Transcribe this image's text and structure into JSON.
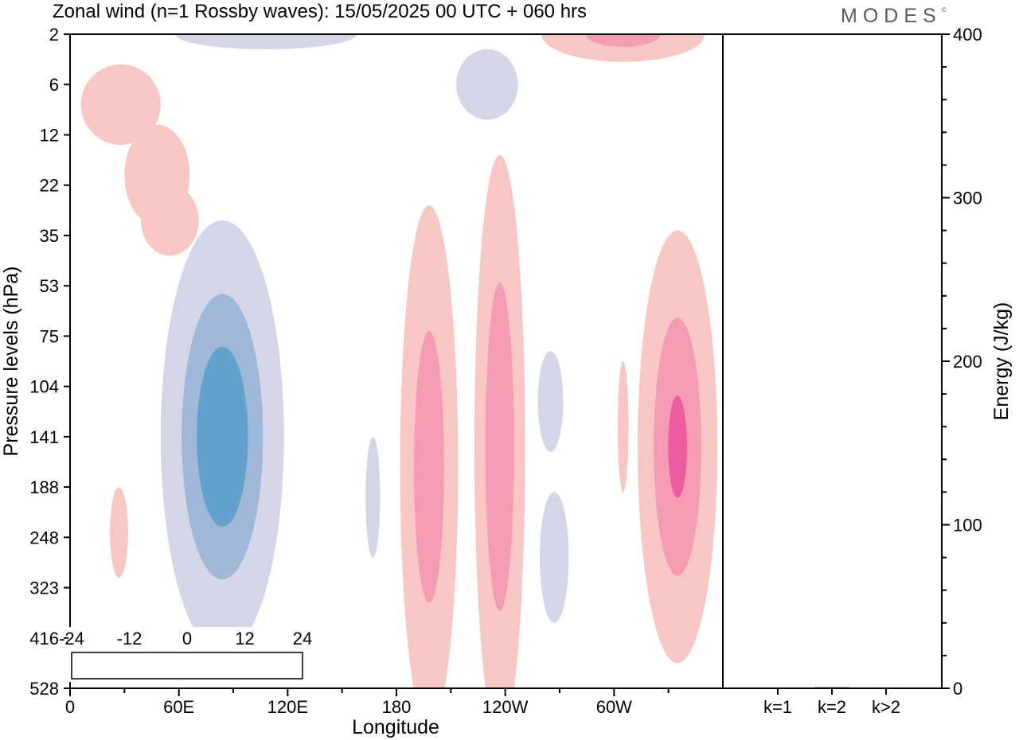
{
  "title": "Zonal wind (n=1 Rossby waves):  15/05/2025  00 UTC  + 060 hrs",
  "brand": "MODES",
  "brand_mark": "©",
  "colors": {
    "neg": [
      "#0b3b5e",
      "#0f5f8f",
      "#2586bf",
      "#62a2cc",
      "#9fb8d8",
      "#d4d6e8"
    ],
    "zero": "#ffffff",
    "pos": [
      "#f9c7c3",
      "#f59bb4",
      "#ec5c9f",
      "#c9208b",
      "#8f137a",
      "#4a0a6a"
    ],
    "frame": "#000000"
  },
  "chart_data": [
    {
      "type": "heatmap",
      "title": "Zonal wind (n=1 Rossby waves):  15/05/2025  00 UTC  + 060 hrs",
      "xlabel": "Longitude",
      "ylabel": "Pressure levels (hPa)",
      "x_range_deg_east": [
        0,
        360
      ],
      "x_ticks": [
        {
          "lon": 0,
          "label": "0"
        },
        {
          "lon": 60,
          "label": "60E"
        },
        {
          "lon": 120,
          "label": "120E"
        },
        {
          "lon": 180,
          "label": "180"
        },
        {
          "lon": 240,
          "label": "120W"
        },
        {
          "lon": 300,
          "label": "60W"
        }
      ],
      "y_levels_hpa": [
        "2",
        "6",
        "12",
        "22",
        "35",
        "53",
        "75",
        "104",
        "141",
        "188",
        "248",
        "323",
        "416",
        "528"
      ],
      "colorbar": {
        "labels": [
          "-24",
          "-12",
          "0",
          "12",
          "24"
        ],
        "levels": [
          -24,
          -20,
          -16,
          -12,
          -8,
          -4,
          0,
          4,
          8,
          12,
          16,
          20,
          24
        ]
      },
      "features": [
        {
          "sign": -1,
          "lon": 84,
          "level_index": 8.0,
          "peak": -14,
          "lon_halfwidth": 34,
          "level_halfwidth": 4.3
        },
        {
          "sign": 1,
          "lon": 198,
          "level_index": 8.6,
          "peak": 9,
          "lon_halfwidth": 16,
          "level_halfwidth": 5.2
        },
        {
          "sign": 1,
          "lon": 237,
          "level_index": 8.2,
          "peak": 10,
          "lon_halfwidth": 14,
          "level_halfwidth": 5.8
        },
        {
          "sign": 1,
          "lon": 335,
          "level_index": 8.2,
          "peak": 11,
          "lon_halfwidth": 22,
          "level_halfwidth": 4.3
        },
        {
          "sign": 1,
          "lon": 305,
          "level_index": 7.8,
          "peak": 3,
          "lon_halfwidth": 3,
          "level_halfwidth": 1.3
        },
        {
          "sign": -1,
          "lon": 167,
          "level_index": 9.2,
          "peak": -3,
          "lon_halfwidth": 4,
          "level_halfwidth": 1.2
        },
        {
          "sign": -1,
          "lon": 265,
          "level_index": 7.3,
          "peak": -3,
          "lon_halfwidth": 7,
          "level_halfwidth": 1.0
        },
        {
          "sign": -1,
          "lon": 267,
          "level_index": 10.4,
          "peak": -3,
          "lon_halfwidth": 8,
          "level_halfwidth": 1.3
        },
        {
          "sign": 1,
          "lon": 27,
          "level_index": 9.9,
          "peak": 3,
          "lon_halfwidth": 5,
          "level_halfwidth": 0.9
        },
        {
          "sign": 1,
          "lon": 28,
          "level_index": 1.4,
          "peak": 5,
          "lon_halfwidth": 22,
          "level_halfwidth": 0.8
        },
        {
          "sign": 1,
          "lon": 48,
          "level_index": 2.8,
          "peak": 4,
          "lon_halfwidth": 18,
          "level_halfwidth": 1.0
        },
        {
          "sign": 1,
          "lon": 55,
          "level_index": 3.7,
          "peak": 3.5,
          "lon_halfwidth": 16,
          "level_halfwidth": 0.7
        },
        {
          "sign": -1,
          "lon": 108,
          "level_index": 0.0,
          "peak": -3,
          "lon_halfwidth": 50,
          "level_halfwidth": 0.3
        },
        {
          "sign": -1,
          "lon": 230,
          "level_index": 1.0,
          "peak": -3,
          "lon_halfwidth": 17,
          "level_halfwidth": 0.7
        },
        {
          "sign": 1,
          "lon": 305,
          "level_index": 0.0,
          "peak": 8,
          "lon_halfwidth": 45,
          "level_halfwidth": 0.55
        }
      ]
    },
    {
      "type": "bar",
      "ylabel": "Energy (J/kg)",
      "categories": [
        "k=1",
        "k=2",
        "k>2"
      ],
      "values": [
        0.4,
        0.6,
        0.5
      ],
      "ylim": [
        0,
        400
      ],
      "y_ticks": [
        "0",
        "100",
        "200",
        "300",
        "400"
      ]
    }
  ]
}
